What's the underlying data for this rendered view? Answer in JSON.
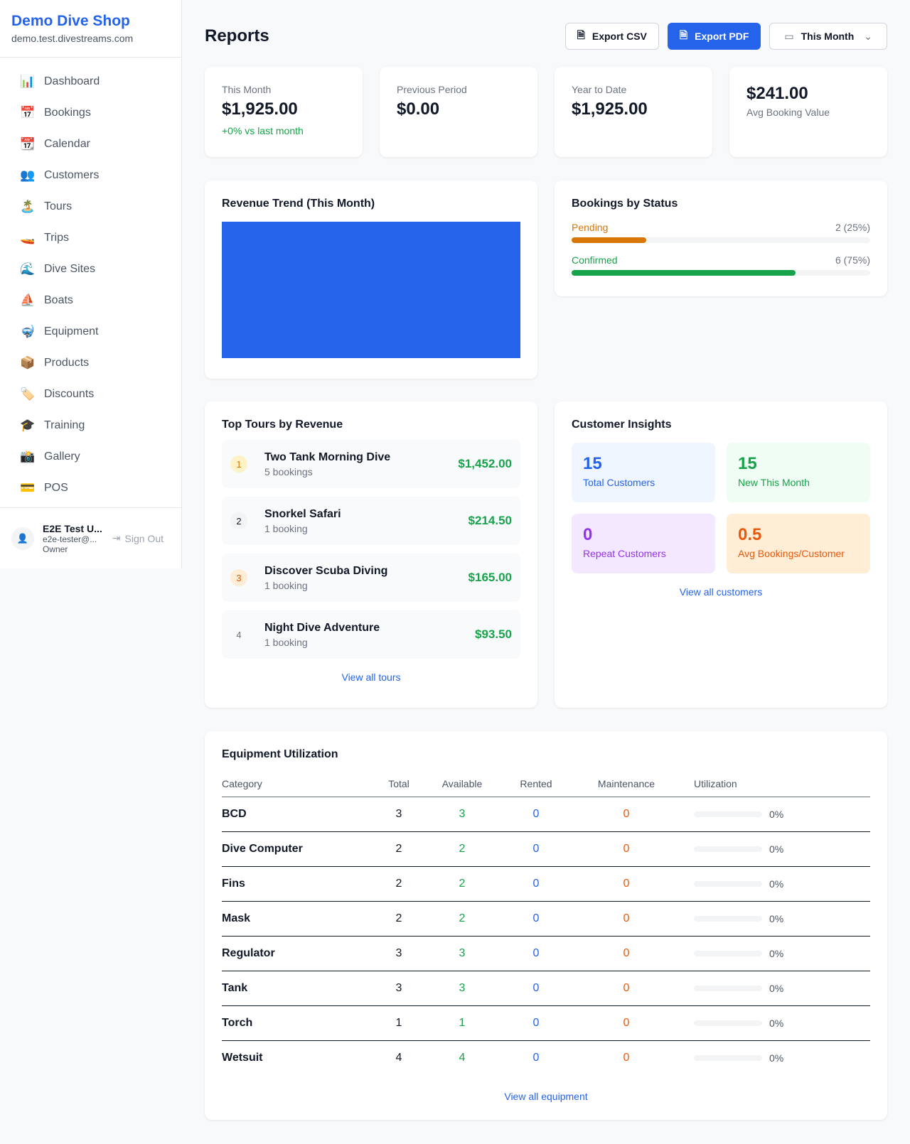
{
  "sidebar": {
    "shop_name": "Demo Dive Shop",
    "domain": "demo.test.divestreams.com",
    "items": [
      {
        "icon": "📊",
        "label": "Dashboard"
      },
      {
        "icon": "📅",
        "label": "Bookings"
      },
      {
        "icon": "📆",
        "label": "Calendar"
      },
      {
        "icon": "👥",
        "label": "Customers"
      },
      {
        "icon": "🏝️",
        "label": "Tours"
      },
      {
        "icon": "🚤",
        "label": "Trips"
      },
      {
        "icon": "🌊",
        "label": "Dive Sites"
      },
      {
        "icon": "⛵",
        "label": "Boats"
      },
      {
        "icon": "🤿",
        "label": "Equipment"
      },
      {
        "icon": "📦",
        "label": "Products"
      },
      {
        "icon": "🏷️",
        "label": "Discounts"
      },
      {
        "icon": "🎓",
        "label": "Training"
      },
      {
        "icon": "📸",
        "label": "Gallery"
      },
      {
        "icon": "💳",
        "label": "POS"
      }
    ],
    "user": {
      "name": "E2E Test U...",
      "email": "e2e-tester@...",
      "role": "Owner",
      "sign_out": "Sign Out"
    }
  },
  "header": {
    "title": "Reports",
    "export_csv": "Export CSV",
    "export_pdf": "Export PDF",
    "period": "This Month"
  },
  "stats": [
    {
      "label": "This Month",
      "value": "$1,925.00",
      "sub": "+0% vs last month"
    },
    {
      "label": "Previous Period",
      "value": "$0.00"
    },
    {
      "label": "Year to Date",
      "value": "$1,925.00"
    },
    {
      "value": "$241.00",
      "label": "Avg Booking Value"
    }
  ],
  "revenue": {
    "title": "Revenue Trend (This Month)"
  },
  "status": {
    "title": "Bookings by Status",
    "items": [
      {
        "label": "Pending",
        "value": "2 (25%)",
        "percent": 25,
        "color": "#d97706"
      },
      {
        "label": "Confirmed",
        "value": "6 (75%)",
        "percent": 75,
        "color": "#16a34a"
      }
    ]
  },
  "tours": {
    "title": "Top Tours by Revenue",
    "link": "View all tours",
    "items": [
      {
        "rank": "1",
        "name": "Two Tank Morning Dive",
        "bookings": "5 bookings",
        "revenue": "$1,452.00"
      },
      {
        "rank": "2",
        "name": "Snorkel Safari",
        "bookings": "1 booking",
        "revenue": "$214.50"
      },
      {
        "rank": "3",
        "name": "Discover Scuba Diving",
        "bookings": "1 booking",
        "revenue": "$165.00"
      },
      {
        "rank": "4",
        "name": "Night Dive Adventure",
        "bookings": "1 booking",
        "revenue": "$93.50"
      }
    ]
  },
  "insights": {
    "title": "Customer Insights",
    "link": "View all customers",
    "items": [
      {
        "value": "15",
        "label": "Total Customers"
      },
      {
        "value": "15",
        "label": "New This Month"
      },
      {
        "value": "0",
        "label": "Repeat Customers"
      },
      {
        "value": "0.5",
        "label": "Avg Bookings/Customer"
      }
    ]
  },
  "equipment": {
    "title": "Equipment Utilization",
    "link": "View all equipment",
    "columns": [
      "Category",
      "Total",
      "Available",
      "Rented",
      "Maintenance",
      "Utilization"
    ],
    "rows": [
      [
        "BCD",
        "3",
        "3",
        "0",
        "0",
        "0%"
      ],
      [
        "Dive Computer",
        "2",
        "2",
        "0",
        "0",
        "0%"
      ],
      [
        "Fins",
        "2",
        "2",
        "0",
        "0",
        "0%"
      ],
      [
        "Mask",
        "2",
        "2",
        "0",
        "0",
        "0%"
      ],
      [
        "Regulator",
        "3",
        "3",
        "0",
        "0",
        "0%"
      ],
      [
        "Tank",
        "3",
        "3",
        "0",
        "0",
        "0%"
      ],
      [
        "Torch",
        "1",
        "1",
        "0",
        "0",
        "0%"
      ],
      [
        "Wetsuit",
        "4",
        "4",
        "0",
        "0",
        "0%"
      ]
    ]
  }
}
